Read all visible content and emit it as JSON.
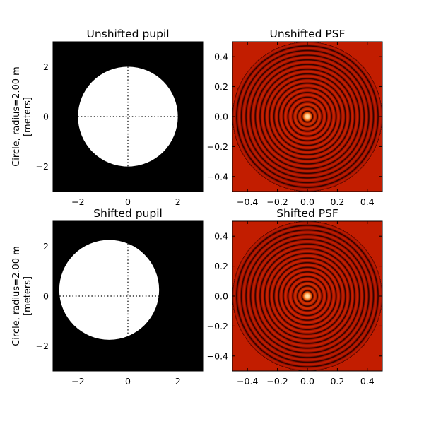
{
  "chart_data": [
    {
      "type": "image",
      "title": "Unshifted pupil",
      "ylabel_line1": "Circle, radius=2.00 m",
      "ylabel_line2": "[meters]",
      "xlim": [
        -3,
        3
      ],
      "ylim": [
        -3,
        3
      ],
      "xticks": [
        -2,
        0,
        2
      ],
      "yticks": [
        -2,
        0,
        2
      ],
      "xtick_labels": [
        "−2",
        "0",
        "2"
      ],
      "ytick_labels": [
        "−2",
        "0",
        "2"
      ],
      "pupil_center": [
        0,
        0
      ],
      "pupil_radius": 2.0
    },
    {
      "type": "heatmap",
      "title": "Unshifted PSF",
      "xlim": [
        -0.5,
        0.5
      ],
      "ylim": [
        -0.5,
        0.5
      ],
      "xticks": [
        -0.4,
        -0.2,
        0.0,
        0.2,
        0.4
      ],
      "yticks": [
        -0.4,
        -0.2,
        0.0,
        0.2,
        0.4
      ],
      "xtick_labels": [
        "−0.4",
        "−0.2",
        "0.0",
        "0.2",
        "0.4"
      ],
      "ytick_labels": [
        "−0.4",
        "−0.2",
        "0.0",
        "0.2",
        "0.4"
      ],
      "ring_radii": [
        0.036,
        0.067,
        0.098,
        0.13,
        0.161,
        0.192,
        0.223,
        0.254,
        0.285,
        0.316,
        0.348,
        0.379,
        0.41,
        0.441,
        0.472,
        0.503,
        0.534,
        0.566,
        0.597,
        0.628,
        0.659,
        0.69
      ],
      "colormap": "hot"
    },
    {
      "type": "image",
      "title": "Shifted pupil",
      "ylabel_line1": "Circle, radius=2.00 m",
      "ylabel_line2": "[meters]",
      "xlim": [
        -3,
        3
      ],
      "ylim": [
        -3,
        3
      ],
      "xticks": [
        -2,
        0,
        2
      ],
      "yticks": [
        -2,
        0,
        2
      ],
      "xtick_labels": [
        "−2",
        "0",
        "2"
      ],
      "ytick_labels": [
        "−2",
        "0",
        "2"
      ],
      "pupil_center": [
        -0.75,
        0.25
      ],
      "pupil_radius": 2.0
    },
    {
      "type": "heatmap",
      "title": "Shifted PSF",
      "xlim": [
        -0.5,
        0.5
      ],
      "ylim": [
        -0.5,
        0.5
      ],
      "xticks": [
        -0.4,
        -0.2,
        0.0,
        0.2,
        0.4
      ],
      "yticks": [
        -0.4,
        -0.2,
        0.0,
        0.2,
        0.4
      ],
      "xtick_labels": [
        "−0.4",
        "−0.2",
        "0.0",
        "0.2",
        "0.4"
      ],
      "ytick_labels": [
        "−0.4",
        "−0.2",
        "0.0",
        "0.2",
        "0.4"
      ],
      "ring_radii": [
        0.036,
        0.067,
        0.098,
        0.13,
        0.161,
        0.192,
        0.223,
        0.254,
        0.285,
        0.316,
        0.348,
        0.379,
        0.41,
        0.441,
        0.472,
        0.503,
        0.534,
        0.566,
        0.597,
        0.628,
        0.659,
        0.69
      ],
      "colormap": "hot"
    }
  ],
  "colors": {
    "pupil_fill": "#ffffff",
    "background": "#000000",
    "psf_core": "#ffd090",
    "psf_ring": "#c41c00",
    "psf_dark": "#1a0000"
  }
}
